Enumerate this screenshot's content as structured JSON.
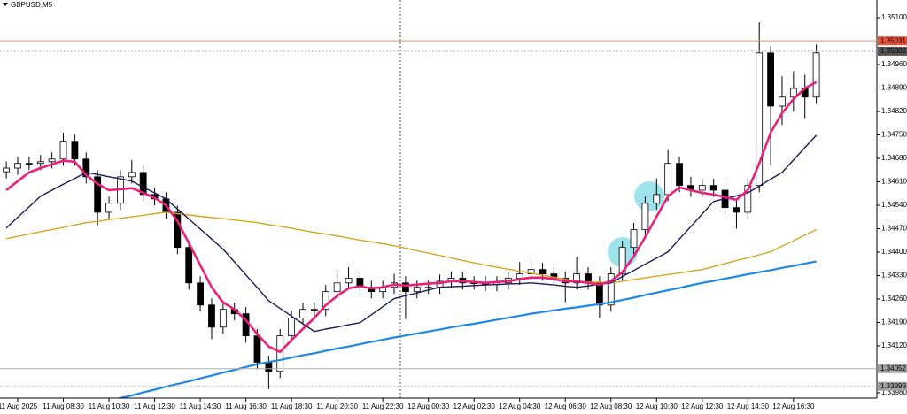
{
  "chart_data": {
    "type": "candlestick",
    "title": "GBPUSD,M5",
    "categories": [
      null,
      "11 Aug 2025",
      null,
      null,
      null,
      "11 Aug 08:30",
      null,
      null,
      null,
      "11 Aug 10:30",
      null,
      null,
      null,
      "11 Aug 12:30",
      null,
      null,
      null,
      "11 Aug 14:30",
      null,
      null,
      null,
      "11 Aug 16:30",
      null,
      null,
      null,
      "11 Aug 18:30",
      null,
      null,
      null,
      "11 Aug 20:30",
      null,
      null,
      null,
      "11 Aug 22:30",
      null,
      null,
      null,
      "12 Aug 00:30",
      null,
      null,
      null,
      "12 Aug 02:30",
      null,
      null,
      null,
      "12 Aug 04:30",
      null,
      null,
      null,
      "12 Aug 06:30",
      null,
      null,
      null,
      "12 Aug 08:30",
      null,
      null,
      null,
      "12 Aug 10:30",
      null,
      null,
      null,
      "12 Aug 12:30",
      null,
      null,
      null,
      "12 Aug 14:30",
      null,
      null,
      null,
      "12 Aug 16:30",
      null,
      null
    ],
    "open": [
      1.3464,
      1.34651,
      1.34665,
      1.34665,
      1.3467,
      1.34678,
      1.34731,
      1.34678,
      1.34625,
      1.34519,
      1.34546,
      1.34625,
      1.34638,
      1.34572,
      1.34559,
      1.34519,
      1.34414,
      1.34308,
      1.34242,
      1.34176,
      1.34229,
      1.34216,
      1.3415,
      1.34071,
      1.34044,
      1.3415,
      1.34203,
      1.34229,
      1.34229,
      1.34282,
      1.34308,
      1.34322,
      1.34295,
      1.34282,
      1.34295,
      1.34308,
      1.34282,
      1.34295,
      1.34295,
      1.34313,
      1.34322,
      1.34308,
      1.34308,
      1.34303,
      1.34308,
      1.34322,
      1.34335,
      1.34348,
      1.34335,
      1.34322,
      1.34308,
      1.34335,
      1.34308,
      1.34242,
      1.34335,
      1.34414,
      1.34467,
      1.34546,
      1.34572,
      1.34665,
      1.34599,
      1.34585,
      1.34599,
      1.34585,
      1.34533,
      1.34519,
      1.34599,
      1.34995,
      1.34836,
      1.34863,
      1.34889,
      1.34863
    ],
    "high": [
      1.34671,
      1.34685,
      1.34685,
      1.3469,
      1.34698,
      1.34757,
      1.34751,
      1.34698,
      1.34645,
      1.34566,
      1.34645,
      1.34675,
      1.34658,
      1.34592,
      1.34579,
      1.34539,
      1.34434,
      1.34328,
      1.34262,
      1.34249,
      1.34249,
      1.34236,
      1.3417,
      1.34091,
      1.3417,
      1.34223,
      1.34249,
      1.34249,
      1.34302,
      1.34348,
      1.34355,
      1.34342,
      1.34315,
      1.34315,
      1.34335,
      1.34328,
      1.34315,
      1.34315,
      1.34333,
      1.34342,
      1.34342,
      1.34328,
      1.34328,
      1.34328,
      1.34342,
      1.3437,
      1.34375,
      1.34368,
      1.34355,
      1.34342,
      1.34385,
      1.34355,
      1.34328,
      1.34355,
      1.34434,
      1.34487,
      1.34566,
      1.3462,
      1.34705,
      1.34685,
      1.34625,
      1.34619,
      1.34619,
      1.34605,
      1.34553,
      1.34619,
      1.35087,
      1.35015,
      1.34925,
      1.3494,
      1.3493,
      1.3502
    ],
    "low": [
      1.3462,
      1.34631,
      1.34645,
      1.34645,
      1.3465,
      1.34658,
      1.34658,
      1.34605,
      1.3448,
      1.34499,
      1.34526,
      1.34605,
      1.34552,
      1.34539,
      1.34499,
      1.34394,
      1.34288,
      1.34222,
      1.3414,
      1.34156,
      1.34196,
      1.3413,
      1.34051,
      1.33991,
      1.34024,
      1.3413,
      1.34183,
      1.34209,
      1.34209,
      1.34262,
      1.34288,
      1.34275,
      1.34262,
      1.34262,
      1.34275,
      1.342,
      1.34262,
      1.34275,
      1.34275,
      1.34293,
      1.34288,
      1.34288,
      1.34283,
      1.34283,
      1.34288,
      1.34302,
      1.34315,
      1.34315,
      1.34302,
      1.3425,
      1.34288,
      1.34288,
      1.34203,
      1.34222,
      1.34315,
      1.34394,
      1.34447,
      1.34526,
      1.34552,
      1.34579,
      1.34565,
      1.34565,
      1.34565,
      1.34513,
      1.3447,
      1.34499,
      1.34579,
      1.3466,
      1.3478,
      1.3482,
      1.348,
      1.34843
    ],
    "close": [
      1.34651,
      1.34665,
      1.34665,
      1.3467,
      1.34678,
      1.34731,
      1.34678,
      1.34625,
      1.34519,
      1.34546,
      1.34625,
      1.34638,
      1.34572,
      1.34559,
      1.34519,
      1.34414,
      1.34308,
      1.34242,
      1.34176,
      1.34229,
      1.34216,
      1.3415,
      1.34071,
      1.34044,
      1.3415,
      1.34203,
      1.34229,
      1.34229,
      1.34282,
      1.34308,
      1.34322,
      1.34295,
      1.34282,
      1.34295,
      1.34308,
      1.34282,
      1.34295,
      1.34295,
      1.34313,
      1.34322,
      1.34308,
      1.34308,
      1.34303,
      1.34308,
      1.34322,
      1.34335,
      1.34348,
      1.34335,
      1.34322,
      1.34308,
      1.34335,
      1.34308,
      1.34242,
      1.34335,
      1.34414,
      1.34467,
      1.34546,
      1.34572,
      1.34665,
      1.34599,
      1.34585,
      1.34599,
      1.34585,
      1.34533,
      1.34519,
      1.34599,
      1.34995,
      1.34836,
      1.34863,
      1.34889,
      1.34863,
      1.34995
    ],
    "up_color": "#ffffff",
    "down_color": "#000000",
    "edge_color": "#000000",
    "lines": [
      {
        "color": "#1e88e5",
        "width": 2.2,
        "values": [
          null,
          null,
          null,
          null,
          null,
          null,
          null,
          null,
          1.33947,
          1.33955,
          1.33964,
          1.33972,
          1.33981,
          1.33989,
          1.33998,
          1.34006,
          1.34014,
          1.34023,
          1.34031,
          1.3404,
          1.34048,
          1.34057,
          1.34065,
          1.34072,
          1.34078,
          1.34085,
          1.34092,
          1.34098,
          1.34105,
          1.34112,
          1.34118,
          1.34125,
          1.34132,
          1.34138,
          1.34145,
          1.34151,
          1.34157,
          1.34163,
          1.34169,
          1.34175,
          1.34181,
          1.34186,
          1.34192,
          1.34198,
          1.34204,
          1.3421,
          1.34216,
          1.34221,
          1.34226,
          1.34231,
          1.34235,
          1.3424,
          1.34245,
          1.3425,
          1.34257,
          1.34264,
          1.34272,
          1.34279,
          1.34286,
          1.34293,
          1.34301,
          1.34308,
          1.34314,
          1.34321,
          1.34327,
          1.34334,
          1.3434,
          1.34346,
          1.34353,
          1.34359,
          1.34366,
          1.34372
        ]
      },
      {
        "color": "#d9a520",
        "width": 1.4,
        "values": [
          1.3444,
          1.34447,
          1.34454,
          1.34461,
          1.34467,
          1.34474,
          1.34481,
          1.34488,
          1.34492,
          1.34497,
          1.34501,
          1.34506,
          1.3451,
          1.34515,
          1.34519,
          1.34515,
          1.34511,
          1.34507,
          1.34503,
          1.345,
          1.34496,
          1.34492,
          1.34488,
          1.34482,
          1.34477,
          1.34471,
          1.34465,
          1.34459,
          1.34454,
          1.34448,
          1.34442,
          1.34436,
          1.34431,
          1.34425,
          1.34419,
          1.34412,
          1.34404,
          1.34397,
          1.3439,
          1.34383,
          1.34375,
          1.34368,
          1.34361,
          1.34355,
          1.34349,
          1.34343,
          1.34337,
          1.34331,
          1.34325,
          1.34319,
          1.34313,
          1.34311,
          1.3431,
          1.34308,
          1.34313,
          1.34318,
          1.34323,
          1.34328,
          1.34333,
          1.34338,
          1.34343,
          1.34348,
          1.34357,
          1.34366,
          1.34375,
          1.34383,
          1.34392,
          1.34401,
          1.34418,
          1.34434,
          1.34451,
          1.34467
        ]
      },
      {
        "color": "#1a1a5e",
        "width": 1.4,
        "values": [
          1.34472,
          1.34504,
          1.34535,
          1.34567,
          1.34585,
          1.34603,
          1.3462,
          1.34638,
          1.34632,
          1.34625,
          1.34619,
          1.34612,
          1.34594,
          1.34577,
          1.34559,
          1.34529,
          1.34499,
          1.34469,
          1.34439,
          1.34409,
          1.34371,
          1.34332,
          1.34294,
          1.34255,
          1.34232,
          1.34209,
          1.34186,
          1.34163,
          1.3417,
          1.34176,
          1.34183,
          1.34189,
          1.34213,
          1.34237,
          1.34261,
          1.3427,
          1.34278,
          1.34287,
          1.34295,
          1.34297,
          1.34298,
          1.343,
          1.34302,
          1.34303,
          1.34305,
          1.34306,
          1.34308,
          1.34305,
          1.34302,
          1.34298,
          1.34295,
          1.34299,
          1.34304,
          1.34308,
          1.34327,
          1.34345,
          1.34364,
          1.34382,
          1.34401,
          1.34439,
          1.34476,
          1.34514,
          1.34551,
          1.3456,
          1.34568,
          1.34577,
          1.34597,
          1.34618,
          1.34638,
          1.34675,
          1.34712,
          1.34749
        ]
      },
      {
        "color": "#e8207a",
        "width": 2.6,
        "values": [
          1.34585,
          1.34612,
          1.34638,
          1.34651,
          1.34662,
          1.34673,
          1.3467,
          1.3463,
          1.34604,
          1.34585,
          1.34588,
          1.34591,
          1.34577,
          1.34562,
          1.3454,
          1.34493,
          1.34427,
          1.34361,
          1.34295,
          1.3425,
          1.34229,
          1.34197,
          1.34155,
          1.34118,
          1.34102,
          1.34137,
          1.34171,
          1.34203,
          1.34242,
          1.34269,
          1.34292,
          1.34298,
          1.34292,
          1.34295,
          1.34303,
          1.343,
          1.34303,
          1.34306,
          1.34308,
          1.34313,
          1.34313,
          1.34311,
          1.34308,
          1.34311,
          1.34313,
          1.34319,
          1.34324,
          1.34324,
          1.34319,
          1.34313,
          1.34313,
          1.34308,
          1.34303,
          1.34313,
          1.3434,
          1.34387,
          1.34445,
          1.34506,
          1.34567,
          1.34593,
          1.34585,
          1.34577,
          1.34572,
          1.34564,
          1.34556,
          1.34585,
          1.34665,
          1.34757,
          1.34815,
          1.34857,
          1.34889,
          1.34908
        ]
      }
    ],
    "levels": [
      {
        "value": 1.35031,
        "label": "1.35031",
        "color": "#f08a6a",
        "dash": false,
        "label_color": "#e8503a"
      },
      {
        "value": 1.35,
        "label": "1.35000",
        "color": "#b0b0b0",
        "dash": true,
        "label_color": "#555555"
      },
      {
        "value": 1.34052,
        "label": "1.34052",
        "color": "#b0b0b0",
        "dash": false,
        "label_color": "#a0a0a0"
      },
      {
        "value": 1.33999,
        "label": "1.33999",
        "color": "#b0b0b0",
        "dash": true,
        "label_color": "#a0a0a0"
      }
    ],
    "ylim": [
      1.33964,
      1.35153
    ],
    "yticks": [
      {
        "value": 1.351,
        "label": "1.35100"
      },
      {
        "value": 1.3496,
        "label": "1.34960"
      },
      {
        "value": 1.3489,
        "label": "1.34890"
      },
      {
        "value": 1.3482,
        "label": "1.34820"
      },
      {
        "value": 1.3475,
        "label": "1.34750"
      },
      {
        "value": 1.3468,
        "label": "1.34680"
      },
      {
        "value": 1.3461,
        "label": "1.34610"
      },
      {
        "value": 1.3454,
        "label": "1.34540"
      },
      {
        "value": 1.3447,
        "label": "1.34470"
      },
      {
        "value": 1.344,
        "label": "1.34400"
      },
      {
        "value": 1.3433,
        "label": "1.34330"
      },
      {
        "value": 1.3426,
        "label": "1.34260"
      },
      {
        "value": 1.3419,
        "label": "1.34190"
      },
      {
        "value": 1.3412,
        "label": "1.34120"
      },
      {
        "value": 1.3398,
        "label": "1.33980"
      }
    ],
    "grid": false
  }
}
